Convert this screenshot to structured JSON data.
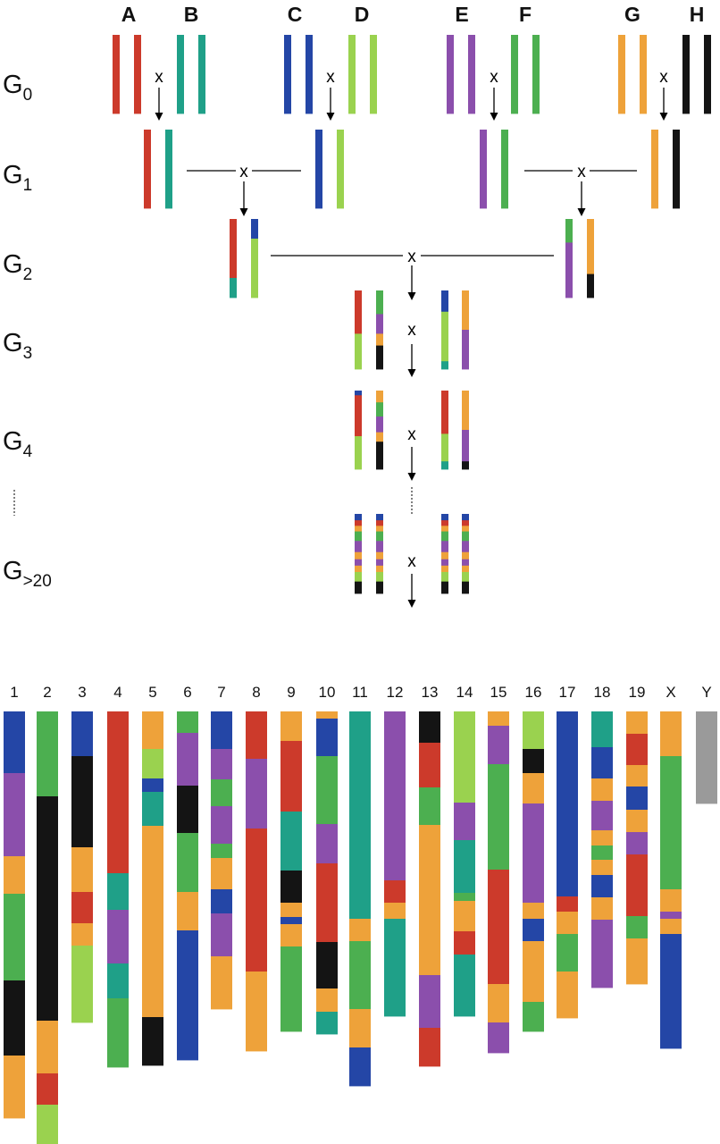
{
  "colors": {
    "red": "#cc3a2b",
    "teal": "#1fa088",
    "blue": "#2446a6",
    "lightgreen": "#9ad24f",
    "purple": "#8b4fac",
    "green": "#4caf50",
    "orange": "#eea23a",
    "black": "#141414",
    "gray": "#9a9a9a"
  },
  "founders": [
    {
      "label": "A",
      "color": "red"
    },
    {
      "label": "B",
      "color": "teal"
    },
    {
      "label": "C",
      "color": "blue"
    },
    {
      "label": "D",
      "color": "lightgreen"
    },
    {
      "label": "E",
      "color": "purple"
    },
    {
      "label": "F",
      "color": "green"
    },
    {
      "label": "G",
      "color": "orange"
    },
    {
      "label": "H",
      "color": "black"
    }
  ],
  "generations": [
    {
      "base": "G",
      "sub": "0"
    },
    {
      "base": "G",
      "sub": "1"
    },
    {
      "base": "G",
      "sub": "2"
    },
    {
      "base": "G",
      "sub": "3"
    },
    {
      "base": "G",
      "sub": "4"
    },
    {
      "base": "G",
      "sub": ">20"
    }
  ],
  "cross_symbol": "x",
  "f1_pairs": [
    [
      "red",
      "teal"
    ],
    [
      "blue",
      "lightgreen"
    ],
    [
      "purple",
      "green"
    ],
    [
      "orange",
      "black"
    ]
  ],
  "g2_pairs": [
    {
      "left": [
        [
          "red",
          0.75
        ],
        [
          "teal",
          0.25
        ]
      ],
      "right": [
        [
          "blue",
          0.25
        ],
        [
          "lightgreen",
          0.75
        ]
      ]
    },
    {
      "left": [
        [
          "green",
          0.3
        ],
        [
          "purple",
          0.7
        ]
      ],
      "right": [
        [
          "orange",
          0.7
        ],
        [
          "black",
          0.3
        ]
      ]
    }
  ],
  "g3_pairs": [
    {
      "left": [
        [
          "red",
          0.55
        ],
        [
          "lightgreen",
          0.45
        ]
      ],
      "right": [
        [
          "green",
          0.3
        ],
        [
          "purple",
          0.25
        ],
        [
          "orange",
          0.15
        ],
        [
          "black",
          0.3
        ]
      ]
    },
    {
      "left": [
        [
          "blue",
          0.27
        ],
        [
          "lightgreen",
          0.63
        ],
        [
          "teal",
          0.1
        ]
      ],
      "right": [
        [
          "orange",
          0.5
        ],
        [
          "purple",
          0.5
        ]
      ]
    }
  ],
  "g4_pairs": [
    {
      "left": [
        [
          "blue",
          0.06
        ],
        [
          "red",
          0.52
        ],
        [
          "lightgreen",
          0.42
        ]
      ],
      "right": [
        [
          "orange",
          0.15
        ],
        [
          "green",
          0.18
        ],
        [
          "purple",
          0.2
        ],
        [
          "orange",
          0.12
        ],
        [
          "black",
          0.35
        ]
      ]
    },
    {
      "left": [
        [
          "red",
          0.55
        ],
        [
          "lightgreen",
          0.35
        ],
        [
          "teal",
          0.1
        ]
      ],
      "right": [
        [
          "orange",
          0.5
        ],
        [
          "purple",
          0.4
        ],
        [
          "black",
          0.1
        ]
      ]
    }
  ],
  "g20_pattern": [
    [
      "blue",
      0.08
    ],
    [
      "red",
      0.07
    ],
    [
      "orange",
      0.07
    ],
    [
      "green",
      0.12
    ],
    [
      "purple",
      0.14
    ],
    [
      "orange",
      0.09
    ],
    [
      "purple",
      0.08
    ],
    [
      "orange",
      0.08
    ],
    [
      "lightgreen",
      0.12
    ],
    [
      "black",
      0.15
    ]
  ],
  "chromosomes": [
    {
      "label": "1",
      "segments": [
        [
          "blue",
          69
        ],
        [
          "purple",
          93
        ],
        [
          "orange",
          42
        ],
        [
          "green",
          97
        ],
        [
          "black",
          84
        ],
        [
          "orange",
          70
        ]
      ]
    },
    {
      "label": "2",
      "segments": [
        [
          "green",
          95
        ],
        [
          "black",
          251
        ],
        [
          "orange",
          59
        ],
        [
          "red",
          35
        ],
        [
          "lightgreen",
          68
        ]
      ]
    },
    {
      "label": "3",
      "segments": [
        [
          "blue",
          50
        ],
        [
          "black",
          102
        ],
        [
          "orange",
          50
        ],
        [
          "red",
          35
        ],
        [
          "orange",
          25
        ],
        [
          "lightgreen",
          86
        ]
      ]
    },
    {
      "label": "4",
      "segments": [
        [
          "red",
          181
        ],
        [
          "teal",
          41
        ],
        [
          "purple",
          60
        ],
        [
          "teal",
          39
        ],
        [
          "green",
          77
        ]
      ]
    },
    {
      "label": "5",
      "segments": [
        [
          "orange",
          42
        ],
        [
          "lightgreen",
          33
        ],
        [
          "blue",
          15
        ],
        [
          "teal",
          38
        ],
        [
          "orange",
          214
        ],
        [
          "black",
          54
        ]
      ]
    },
    {
      "label": "6",
      "segments": [
        [
          "green",
          24
        ],
        [
          "purple",
          59
        ],
        [
          "black",
          53
        ],
        [
          "green",
          66
        ],
        [
          "orange",
          43
        ],
        [
          "blue",
          145
        ]
      ]
    },
    {
      "label": "7",
      "segments": [
        [
          "blue",
          42
        ],
        [
          "purple",
          34
        ],
        [
          "green",
          30
        ],
        [
          "purple",
          42
        ],
        [
          "green",
          16
        ],
        [
          "orange",
          35
        ],
        [
          "blue",
          27
        ],
        [
          "purple",
          48
        ],
        [
          "orange",
          59
        ]
      ]
    },
    {
      "label": "8",
      "segments": [
        [
          "red",
          53
        ],
        [
          "purple",
          78
        ],
        [
          "red",
          160
        ],
        [
          "orange",
          89
        ]
      ]
    },
    {
      "label": "9",
      "segments": [
        [
          "orange",
          33
        ],
        [
          "red",
          79
        ],
        [
          "teal",
          66
        ],
        [
          "black",
          36
        ],
        [
          "orange",
          16
        ],
        [
          "blue",
          8
        ],
        [
          "orange",
          25
        ],
        [
          "green",
          95
        ]
      ]
    },
    {
      "label": "10",
      "segments": [
        [
          "orange",
          8
        ],
        [
          "blue",
          42
        ],
        [
          "green",
          76
        ],
        [
          "purple",
          44
        ],
        [
          "red",
          88
        ],
        [
          "black",
          52
        ],
        [
          "orange",
          26
        ],
        [
          "teal",
          25
        ]
      ]
    },
    {
      "label": "11",
      "segments": [
        [
          "teal",
          232
        ],
        [
          "orange",
          25
        ],
        [
          "green",
          76
        ],
        [
          "orange",
          43
        ],
        [
          "blue",
          43
        ]
      ]
    },
    {
      "label": "12",
      "segments": [
        [
          "purple",
          189
        ],
        [
          "red",
          25
        ],
        [
          "orange",
          18
        ],
        [
          "teal",
          109
        ]
      ]
    },
    {
      "label": "13",
      "segments": [
        [
          "black",
          35
        ],
        [
          "red",
          50
        ],
        [
          "green",
          42
        ],
        [
          "orange",
          168
        ],
        [
          "purple",
          59
        ],
        [
          "red",
          43
        ]
      ]
    },
    {
      "label": "14",
      "segments": [
        [
          "lightgreen",
          102
        ],
        [
          "purple",
          42
        ],
        [
          "teal",
          59
        ],
        [
          "green",
          9
        ],
        [
          "orange",
          34
        ],
        [
          "red",
          26
        ],
        [
          "teal",
          69
        ]
      ]
    },
    {
      "label": "15",
      "segments": [
        [
          "orange",
          16
        ],
        [
          "purple",
          43
        ],
        [
          "green",
          118
        ],
        [
          "red",
          128
        ],
        [
          "orange",
          43
        ],
        [
          "purple",
          34
        ]
      ]
    },
    {
      "label": "16",
      "segments": [
        [
          "lightgreen",
          42
        ],
        [
          "black",
          27
        ],
        [
          "orange",
          34
        ],
        [
          "purple",
          111
        ],
        [
          "orange",
          18
        ],
        [
          "blue",
          25
        ],
        [
          "orange",
          68
        ],
        [
          "green",
          33
        ]
      ]
    },
    {
      "label": "17",
      "segments": [
        [
          "blue",
          207
        ],
        [
          "red",
          17
        ],
        [
          "orange",
          25
        ],
        [
          "green",
          42
        ],
        [
          "orange",
          52
        ]
      ]
    },
    {
      "label": "18",
      "segments": [
        [
          "teal",
          40
        ],
        [
          "blue",
          35
        ],
        [
          "orange",
          25
        ],
        [
          "purple",
          33
        ],
        [
          "orange",
          17
        ],
        [
          "green",
          16
        ],
        [
          "orange",
          17
        ],
        [
          "blue",
          25
        ],
        [
          "orange",
          25
        ],
        [
          "purple",
          76
        ]
      ]
    },
    {
      "label": "19",
      "segments": [
        [
          "orange",
          25
        ],
        [
          "red",
          35
        ],
        [
          "orange",
          24
        ],
        [
          "blue",
          26
        ],
        [
          "orange",
          25
        ],
        [
          "purple",
          25
        ],
        [
          "red",
          69
        ],
        [
          "green",
          25
        ],
        [
          "orange",
          51
        ]
      ]
    },
    {
      "label": "X",
      "segments": [
        [
          "orange",
          50
        ],
        [
          "green",
          149
        ],
        [
          "orange",
          25
        ],
        [
          "purple",
          8
        ],
        [
          "orange",
          17
        ],
        [
          "blue",
          128
        ]
      ]
    },
    {
      "label": "Y",
      "segments": [
        [
          "gray",
          103
        ]
      ]
    }
  ]
}
